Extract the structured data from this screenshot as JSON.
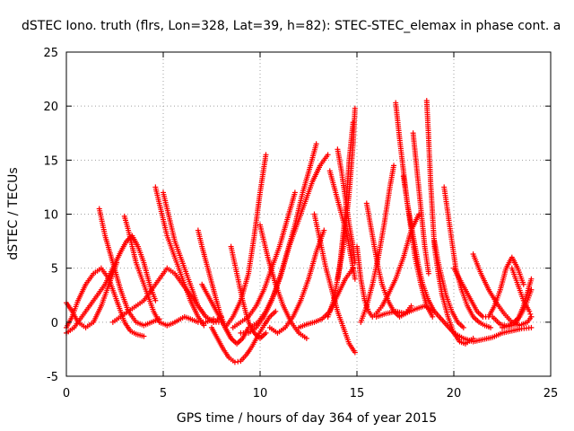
{
  "chart_data": {
    "type": "scatter",
    "title": "dSTEC Iono. truth (flrs, Lon=328, Lat=39, h=82): STEC-STEC_elemax in phase cont. a",
    "xlabel": "GPS time / hours of day 364 of year 2015",
    "ylabel": "dSTEC  / TECUs",
    "xlim": [
      0,
      25
    ],
    "ylim": [
      -5,
      25
    ],
    "xticks": [
      0,
      5,
      10,
      15,
      20,
      25
    ],
    "yticks": [
      -5,
      0,
      5,
      10,
      15,
      20,
      25
    ],
    "grid": true,
    "marker": "+",
    "color": "#ff0000",
    "series": [
      {
        "x": [
          0.0,
          0.3,
          0.6,
          1.0,
          1.4,
          1.8,
          2.2,
          2.6,
          3.0,
          3.3,
          3.6,
          4.0
        ],
        "y": [
          -0.5,
          0.5,
          2.0,
          3.5,
          4.5,
          5.0,
          4.0,
          2.0,
          0.0,
          -0.8,
          -1.1,
          -1.3
        ]
      },
      {
        "x": [
          0.0,
          0.4,
          0.8,
          1.2,
          1.6,
          2.0,
          2.4,
          2.8,
          3.1,
          3.4,
          3.7,
          4.0,
          4.3,
          4.6
        ],
        "y": [
          -1.0,
          -0.5,
          0.5,
          1.5,
          2.5,
          3.5,
          5.0,
          6.5,
          7.5,
          8.0,
          7.0,
          5.5,
          3.5,
          2.0
        ]
      },
      {
        "x": [
          0.0,
          0.3,
          0.6,
          1.0,
          1.4,
          1.8,
          2.2,
          2.6
        ],
        "y": [
          1.8,
          1.0,
          0.0,
          -0.5,
          0.0,
          1.5,
          3.5,
          5.5
        ]
      },
      {
        "x": [
          1.7,
          2.0,
          2.4,
          2.8,
          3.2,
          3.6,
          4.0,
          4.4,
          4.8
        ],
        "y": [
          10.5,
          8.0,
          5.5,
          3.0,
          1.0,
          0.0,
          -0.3,
          0.0,
          0.3
        ]
      },
      {
        "x": [
          3.0,
          3.2,
          3.4,
          3.6,
          3.9,
          4.2,
          4.5,
          4.8,
          5.2
        ],
        "y": [
          9.8,
          8.5,
          7.0,
          5.5,
          4.0,
          2.5,
          1.0,
          0.0,
          -0.3
        ]
      },
      {
        "x": [
          4.6,
          4.8,
          5.0,
          5.2,
          5.5,
          5.8,
          6.1,
          6.4,
          6.8,
          7.1
        ],
        "y": [
          12.5,
          11.0,
          9.5,
          8.0,
          6.5,
          5.0,
          3.5,
          2.0,
          0.5,
          -0.3
        ]
      },
      {
        "x": [
          5.0,
          5.2,
          5.4,
          5.6,
          5.9,
          6.2,
          6.5,
          6.8,
          7.2,
          7.6,
          8.0
        ],
        "y": [
          12.0,
          10.5,
          9.0,
          7.5,
          6.0,
          4.5,
          3.0,
          1.5,
          0.5,
          0.0,
          0.0
        ]
      },
      {
        "x": [
          5.2,
          5.5,
          5.8,
          6.1,
          6.4,
          6.8,
          7.2,
          7.6
        ],
        "y": [
          -0.3,
          -0.1,
          0.2,
          0.5,
          0.3,
          0.0,
          0.0,
          0.3
        ]
      },
      {
        "x": [
          2.4,
          2.8,
          3.2,
          3.6,
          4.0,
          4.4,
          4.8,
          5.2,
          5.6,
          6.0,
          6.4,
          6.8,
          7.2,
          7.6,
          8.0
        ],
        "y": [
          0.0,
          0.5,
          1.0,
          1.5,
          2.0,
          3.0,
          4.0,
          5.0,
          4.5,
          3.5,
          2.5,
          1.5,
          0.5,
          0.0,
          0.5
        ]
      },
      {
        "x": [
          6.8,
          7.0,
          7.3,
          7.6,
          7.9,
          8.2,
          8.5,
          8.8,
          9.1,
          9.4
        ],
        "y": [
          8.5,
          7.0,
          5.0,
          3.0,
          1.0,
          -0.5,
          -1.5,
          -2.0,
          -1.5,
          -0.5
        ]
      },
      {
        "x": [
          7.5,
          7.8,
          8.1,
          8.4,
          8.7,
          9.0,
          9.3,
          9.6,
          9.9,
          10.2,
          10.5,
          10.8
        ],
        "y": [
          -0.5,
          -1.5,
          -2.5,
          -3.3,
          -3.7,
          -3.6,
          -3.0,
          -2.2,
          -1.2,
          -0.3,
          0.5,
          1.0
        ]
      },
      {
        "x": [
          7.0,
          7.3,
          7.6,
          7.9,
          8.2,
          8.5
        ],
        "y": [
          3.5,
          2.5,
          1.5,
          0.5,
          -0.5,
          -1.5
        ]
      },
      {
        "x": [
          8.5,
          8.8,
          9.1,
          9.4,
          9.7,
          10.0,
          10.3
        ],
        "y": [
          7.0,
          4.5,
          2.0,
          0.0,
          -1.0,
          -1.5,
          -1.0
        ]
      },
      {
        "x": [
          8.2,
          8.6,
          9.0,
          9.4,
          9.7,
          10.0,
          10.3
        ],
        "y": [
          -0.5,
          0.5,
          2.0,
          4.5,
          8.0,
          12.0,
          15.5
        ]
      },
      {
        "x": [
          8.6,
          9.0,
          9.4,
          9.8,
          10.2,
          10.6,
          11.0,
          11.4,
          11.8
        ],
        "y": [
          -0.5,
          0.0,
          0.5,
          1.5,
          3.0,
          5.0,
          7.0,
          9.5,
          12.0
        ]
      },
      {
        "x": [
          9.0,
          9.4,
          9.8,
          10.2,
          10.6,
          11.0,
          11.4,
          11.8,
          12.2,
          12.6,
          12.9
        ],
        "y": [
          -1.0,
          -1.0,
          -0.5,
          0.5,
          2.0,
          4.0,
          6.5,
          9.0,
          12.0,
          14.5,
          16.5
        ]
      },
      {
        "x": [
          9.5,
          9.9,
          10.3,
          10.7,
          11.1,
          11.5,
          11.9,
          12.3,
          12.7,
          13.1,
          13.5
        ],
        "y": [
          -0.5,
          0.0,
          1.0,
          2.5,
          4.5,
          7.0,
          9.0,
          11.0,
          13.0,
          14.5,
          15.5
        ]
      },
      {
        "x": [
          10.5,
          10.9,
          11.3,
          11.7,
          12.1,
          12.5,
          12.9,
          13.3
        ],
        "y": [
          -0.5,
          -1.0,
          -0.5,
          0.5,
          2.0,
          4.0,
          6.5,
          8.5
        ]
      },
      {
        "x": [
          10.0,
          10.4,
          10.8,
          11.2,
          11.6,
          12.0,
          12.4
        ],
        "y": [
          9.0,
          6.0,
          3.5,
          1.5,
          0.0,
          -1.0,
          -1.5
        ]
      },
      {
        "x": [
          12.0,
          12.4,
          12.8,
          13.2,
          13.6,
          14.0,
          14.4,
          14.8
        ],
        "y": [
          -0.5,
          -0.2,
          0.0,
          0.3,
          1.0,
          2.5,
          4.0,
          5.0
        ]
      },
      {
        "x": [
          12.8,
          13.1,
          13.4,
          13.7,
          14.0,
          14.3,
          14.6,
          14.9
        ],
        "y": [
          10.0,
          7.5,
          5.0,
          3.0,
          1.0,
          -0.5,
          -2.0,
          -2.8
        ]
      },
      {
        "x": [
          13.6,
          13.9,
          14.2,
          14.5,
          14.7,
          14.9
        ],
        "y": [
          14.0,
          12.0,
          10.0,
          8.0,
          6.0,
          4.0
        ]
      },
      {
        "x": [
          14.0,
          14.2,
          14.4,
          14.6,
          14.8,
          14.9
        ],
        "y": [
          16.0,
          14.0,
          11.5,
          9.0,
          7.0,
          5.5
        ]
      },
      {
        "x": [
          14.0,
          14.3,
          14.6,
          14.8,
          14.9
        ],
        "y": [
          4.0,
          7.0,
          12.0,
          16.5,
          19.8
        ]
      },
      {
        "x": [
          13.5,
          13.8,
          14.1,
          14.4,
          14.6,
          14.8
        ],
        "y": [
          0.5,
          2.0,
          5.0,
          10.0,
          15.0,
          18.5
        ]
      },
      {
        "x": [
          15.0,
          15.2,
          15.4,
          15.6,
          15.8,
          16.0,
          16.3,
          16.6,
          17.0,
          17.4,
          17.8,
          18.2
        ],
        "y": [
          7.0,
          4.0,
          2.0,
          1.0,
          0.5,
          0.8,
          1.5,
          2.5,
          4.0,
          6.0,
          8.5,
          10.0
        ]
      },
      {
        "x": [
          15.5,
          15.7,
          15.9,
          16.1,
          16.3,
          16.6,
          16.9,
          17.2,
          17.5,
          17.8
        ],
        "y": [
          11.0,
          9.0,
          7.0,
          5.0,
          3.5,
          2.0,
          1.0,
          0.5,
          0.8,
          1.5
        ]
      },
      {
        "x": [
          15.2,
          15.5,
          15.8,
          16.1,
          16.4,
          16.7,
          16.9
        ],
        "y": [
          0.0,
          1.5,
          3.5,
          6.0,
          9.0,
          12.5,
          14.5
        ]
      },
      {
        "x": [
          16.0,
          16.5,
          17.0,
          17.5,
          18.0,
          18.5,
          19.0,
          19.5,
          20.0,
          20.5,
          21.0,
          21.5,
          22.0,
          22.5,
          23.0,
          23.5,
          24.0
        ],
        "y": [
          0.5,
          0.8,
          1.0,
          0.8,
          1.2,
          1.5,
          1.0,
          0.0,
          -1.0,
          -1.5,
          -1.8,
          -1.6,
          -1.4,
          -1.0,
          -0.8,
          -0.6,
          -0.5
        ]
      },
      {
        "x": [
          17.0,
          17.2,
          17.4,
          17.6,
          17.8,
          18.0,
          18.3,
          18.6,
          18.9
        ],
        "y": [
          20.3,
          17.0,
          14.0,
          11.0,
          8.5,
          6.0,
          3.5,
          1.5,
          0.5
        ]
      },
      {
        "x": [
          17.4,
          17.6,
          17.8,
          18.0,
          18.2,
          18.4,
          18.7,
          19.0
        ],
        "y": [
          13.5,
          11.0,
          9.0,
          7.0,
          5.0,
          3.5,
          2.0,
          1.0
        ]
      },
      {
        "x": [
          18.6,
          18.7,
          18.8,
          18.9,
          19.0,
          19.2,
          19.4,
          19.7,
          20.0,
          20.3,
          20.6,
          21.0
        ],
        "y": [
          20.5,
          17.0,
          13.0,
          10.0,
          7.0,
          4.5,
          2.5,
          0.5,
          -1.0,
          -1.8,
          -2.0,
          -1.5
        ]
      },
      {
        "x": [
          17.9,
          18.1,
          18.3,
          18.5,
          18.7
        ],
        "y": [
          17.5,
          14.0,
          10.5,
          7.0,
          4.5
        ]
      },
      {
        "x": [
          19.5,
          19.7,
          19.9,
          20.1,
          20.4,
          20.7,
          21.0,
          21.3,
          21.6,
          21.9
        ],
        "y": [
          12.5,
          10.0,
          7.5,
          5.0,
          3.0,
          1.5,
          0.5,
          0.0,
          -0.3,
          -0.5
        ]
      },
      {
        "x": [
          19.0,
          19.2,
          19.4,
          19.6,
          19.9,
          20.2,
          20.5
        ],
        "y": [
          7.5,
          5.5,
          4.0,
          2.5,
          1.0,
          0.0,
          -0.5
        ]
      },
      {
        "x": [
          20.0,
          20.3,
          20.6,
          20.9,
          21.2,
          21.5,
          21.8,
          22.1,
          22.4,
          22.7,
          23.0,
          23.3,
          23.6
        ],
        "y": [
          5.0,
          4.0,
          3.0,
          2.0,
          1.0,
          0.5,
          0.5,
          1.5,
          3.0,
          5.0,
          6.0,
          5.0,
          3.5
        ]
      },
      {
        "x": [
          21.0,
          21.4,
          21.8,
          22.2,
          22.6,
          23.0,
          23.4,
          23.8,
          24.0
        ],
        "y": [
          6.3,
          4.5,
          3.0,
          1.8,
          0.8,
          0.0,
          -0.3,
          0.0,
          0.5
        ]
      },
      {
        "x": [
          22.0,
          22.4,
          22.8,
          23.2,
          23.6,
          24.0
        ],
        "y": [
          0.5,
          -0.2,
          -0.4,
          -0.2,
          1.5,
          4.0
        ]
      },
      {
        "x": [
          23.0,
          23.3,
          23.6,
          23.9,
          24.0
        ],
        "y": [
          5.0,
          3.5,
          2.0,
          1.0,
          0.5
        ]
      },
      {
        "x": [
          22.5,
          22.8,
          23.1,
          23.4,
          23.7,
          24.0
        ],
        "y": [
          -0.5,
          -0.3,
          0.0,
          0.5,
          1.5,
          3.0
        ]
      }
    ]
  }
}
